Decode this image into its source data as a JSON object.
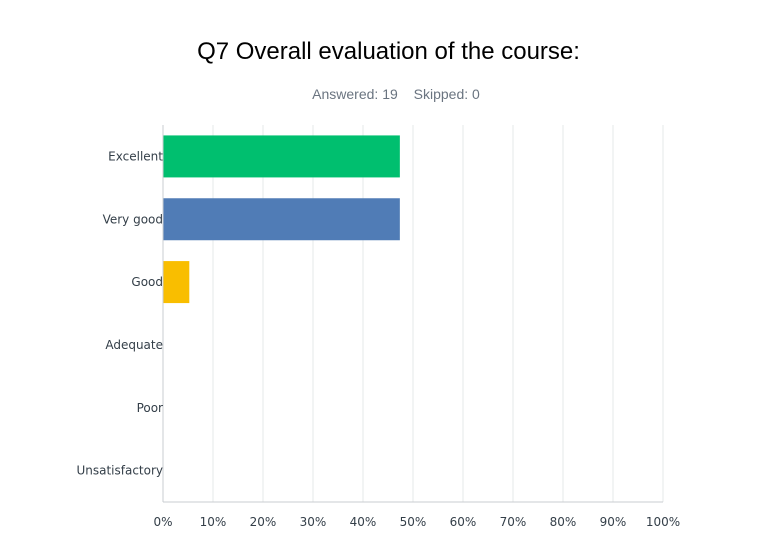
{
  "summary": {
    "answered": "Answered: 19",
    "skipped": "Skipped: 0"
  },
  "chart_data": {
    "type": "bar",
    "orientation": "horizontal",
    "title": "Q7 Overall evaluation of the course:",
    "categories": [
      "Excellent",
      "Very good",
      "Good",
      "Adequate",
      "Poor",
      "Unsatisfactory"
    ],
    "values": [
      47.37,
      47.37,
      5.26,
      0,
      0,
      0
    ],
    "colors": [
      "#00bf6f",
      "#507cb6",
      "#f9be00",
      "#6bc8cd",
      "#ff8b4f",
      "#7d5a94"
    ],
    "xlim": [
      0,
      100
    ],
    "x_ticks": [
      "0%",
      "10%",
      "20%",
      "30%",
      "40%",
      "50%",
      "60%",
      "70%",
      "80%",
      "90%",
      "100%"
    ],
    "grid": true
  }
}
